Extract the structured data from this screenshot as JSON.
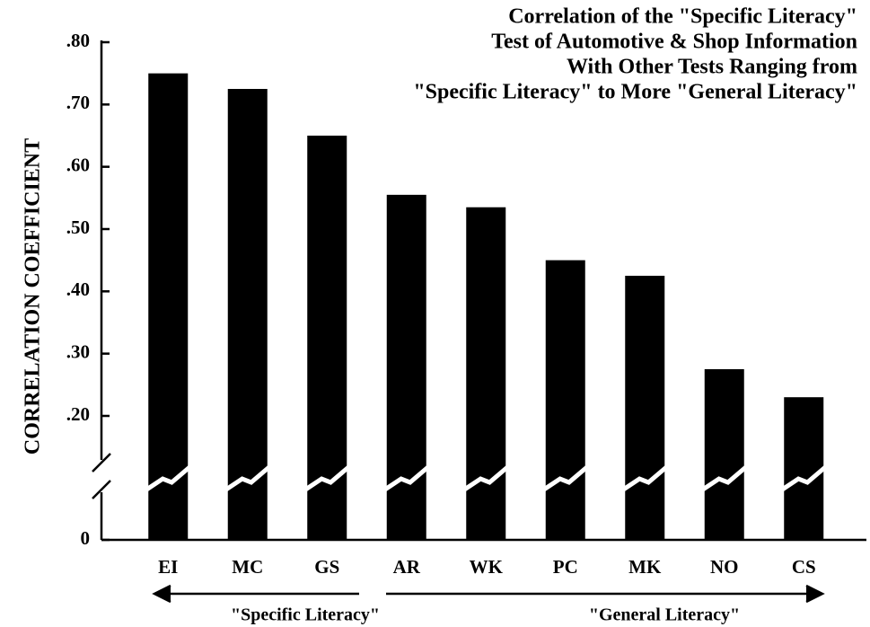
{
  "chart_data": {
    "type": "bar",
    "title": [
      "Correlation of the \"Specific Literacy\"",
      "Test of Automotive & Shop Information",
      "With Other Tests Ranging from",
      "\"Specific Literacy\" to More \"General Literacy\""
    ],
    "y_label": "CORRELATION COEFFICIENT",
    "categories": [
      "EI",
      "MC",
      "GS",
      "AR",
      "WK",
      "PC",
      "MK",
      "NO",
      "CS"
    ],
    "values": [
      0.75,
      0.725,
      0.65,
      0.555,
      0.535,
      0.45,
      0.425,
      0.275,
      0.23
    ],
    "color": "#000000",
    "ylim": [
      0,
      0.8
    ],
    "yticks": [
      0,
      {
        "value": 0.2,
        "label": ".20"
      },
      {
        "value": 0.3,
        "label": ".30"
      },
      {
        "value": 0.4,
        "label": ".40"
      },
      {
        "value": 0.5,
        "label": ".50"
      },
      {
        "value": 0.6,
        "label": ".60"
      },
      {
        "value": 0.7,
        "label": ".70"
      },
      {
        "value": 0.8,
        "label": ".80"
      }
    ],
    "annotations": [
      "\"Specific Literacy\"",
      "\"General Literacy\""
    ]
  }
}
